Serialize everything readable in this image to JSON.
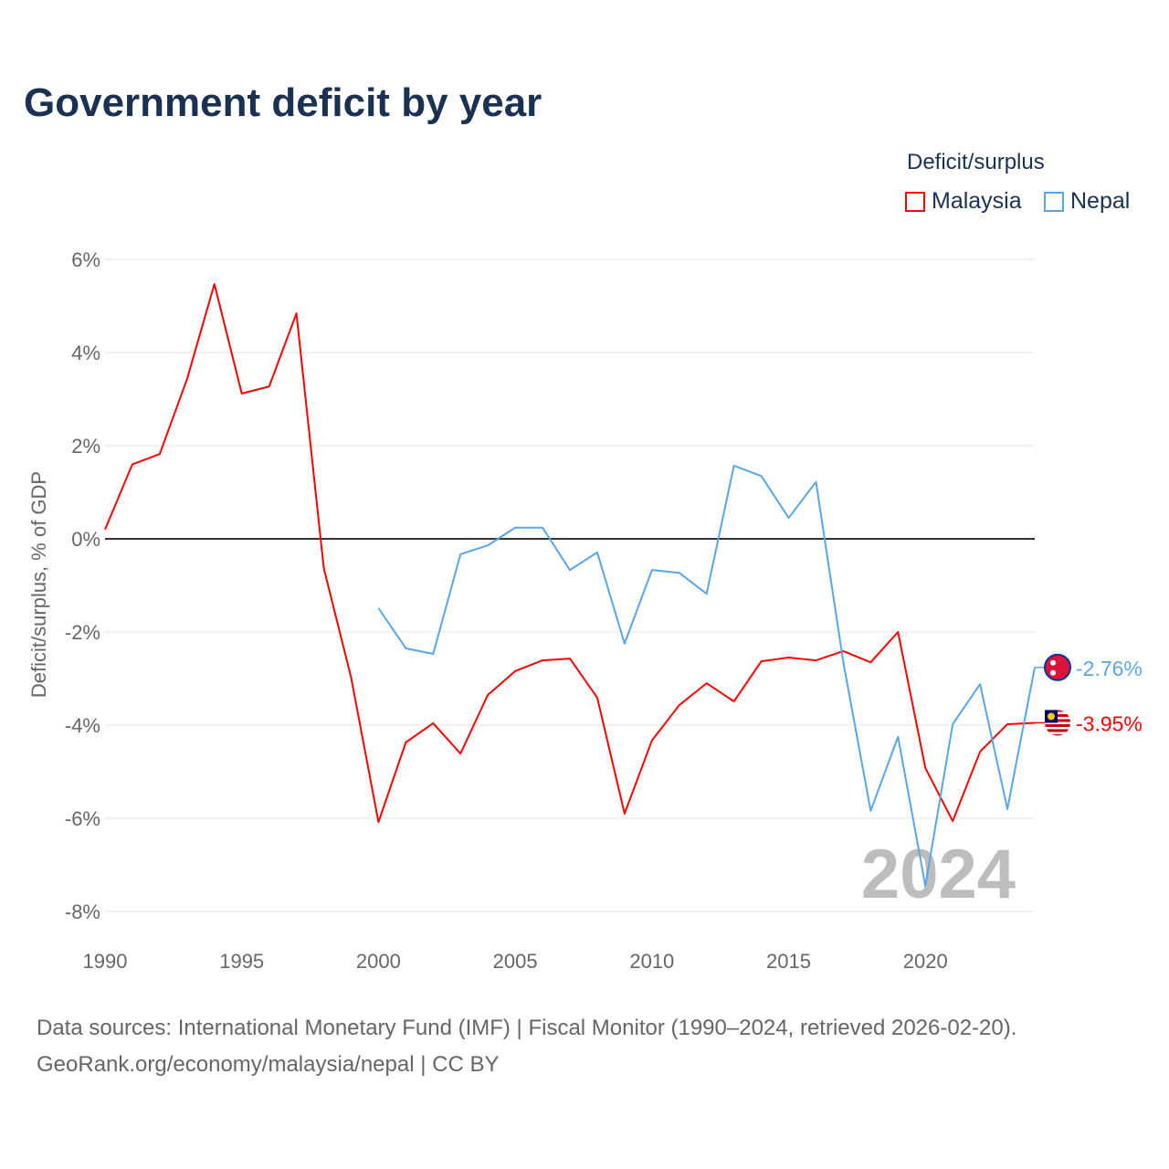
{
  "title": "Government deficit by year",
  "legend": {
    "title": "Deficit/surplus",
    "items": [
      {
        "name": "Malaysia",
        "color": "#ff0000"
      },
      {
        "name": "Nepal",
        "color": "#5aa5e8"
      }
    ]
  },
  "source": {
    "line1": "Data sources: International Monetary Fund (IMF) | Fiscal Monitor (1990–2024, retrieved 2026-02-20).",
    "line2": "GeoRank.org/economy/malaysia/nepal | CC BY"
  },
  "chart_data": {
    "type": "line",
    "title": "Government deficit by year",
    "ylabel": "Deficit/surplus, % of GDP",
    "xlabel": "",
    "xlim": [
      1990,
      2024
    ],
    "ylim": [
      -8,
      6
    ],
    "yticks": [
      6,
      4,
      2,
      0,
      -2,
      -4,
      -6,
      -8
    ],
    "ytick_labels": [
      "6%",
      "4%",
      "2%",
      "0%",
      "-2%",
      "-4%",
      "-6%",
      "-8%"
    ],
    "xticks": [
      1990,
      1995,
      2000,
      2005,
      2010,
      2015,
      2020
    ],
    "xtick_labels": [
      "1990",
      "1995",
      "2000",
      "2005",
      "2010",
      "2015",
      "2020"
    ],
    "watermark": "2024",
    "grid": true,
    "legend_position": "top-right",
    "series": [
      {
        "name": "Malaysia",
        "color": "#ff0000",
        "end_label": "-3.95%",
        "x": [
          1990,
          1991,
          1992,
          1993,
          1994,
          1995,
          1996,
          1997,
          1998,
          1999,
          2000,
          2001,
          2002,
          2003,
          2004,
          2005,
          2006,
          2007,
          2008,
          2009,
          2010,
          2011,
          2012,
          2013,
          2014,
          2015,
          2016,
          2017,
          2018,
          2019,
          2020,
          2021,
          2022,
          2023,
          2024
        ],
        "values": [
          0.2,
          1.6,
          1.82,
          3.43,
          5.47,
          3.12,
          3.27,
          4.84,
          -0.63,
          -2.98,
          -6.08,
          -4.37,
          -3.96,
          -4.61,
          -3.35,
          -2.84,
          -2.61,
          -2.57,
          -3.41,
          -5.9,
          -4.33,
          -3.57,
          -3.1,
          -3.49,
          -2.63,
          -2.55,
          -2.61,
          -2.41,
          -2.65,
          -2.0,
          -4.92,
          -6.06,
          -4.57,
          -3.98,
          -3.95
        ]
      },
      {
        "name": "Nepal",
        "color": "#5aa5e8",
        "end_label": "-2.76%",
        "x": [
          2000,
          2001,
          2002,
          2003,
          2004,
          2005,
          2006,
          2007,
          2008,
          2009,
          2010,
          2011,
          2012,
          2013,
          2014,
          2015,
          2016,
          2017,
          2018,
          2019,
          2020,
          2021,
          2022,
          2023,
          2024
        ],
        "values": [
          -1.49,
          -2.35,
          -2.47,
          -0.33,
          -0.14,
          0.24,
          0.24,
          -0.67,
          -0.29,
          -2.25,
          -0.67,
          -0.73,
          -1.18,
          1.57,
          1.35,
          0.45,
          1.22,
          -2.65,
          -5.84,
          -4.25,
          -7.45,
          -3.98,
          -3.12,
          -5.8,
          -2.76
        ]
      }
    ]
  }
}
